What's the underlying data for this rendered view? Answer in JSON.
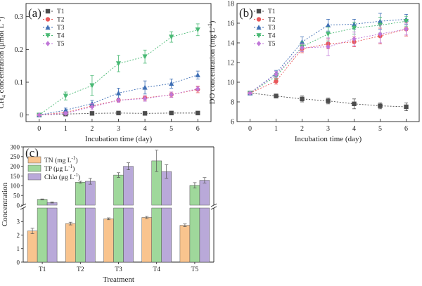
{
  "chart_data": [
    {
      "panel_label": "(a)",
      "type": "line",
      "xlabel": "Incubation time (day)",
      "ylabel": "CH4 concentration (μmol L⁻¹)",
      "ylabel_main": "CH",
      "ylabel_sub": "4",
      "ylabel_rest": " concentration (μmol L",
      "ylabel_sup": "-1",
      "ylabel_end": ")",
      "x": [
        0,
        1,
        2,
        3,
        4,
        5,
        6
      ],
      "xlim": [
        -0.5,
        6.5
      ],
      "ylim": [
        -0.02,
        0.34
      ],
      "yticks": [
        0,
        0.1,
        0.2,
        0.3
      ],
      "ytick_labels": [
        "0",
        "0.1",
        "0.2",
        "0.3"
      ],
      "legend": "top-left",
      "grid": false,
      "series": [
        {
          "name": "T1",
          "color": "#4d4d4d",
          "marker": "square",
          "values": [
            0,
            0.003,
            0.005,
            0.006,
            0.005,
            0.006,
            0.006
          ],
          "err": [
            0.002,
            0.002,
            0.002,
            0.002,
            0.002,
            0.003,
            0.003
          ]
        },
        {
          "name": "T2",
          "color": "#e8575a",
          "marker": "circle",
          "values": [
            0,
            0.008,
            0.028,
            0.045,
            0.052,
            0.062,
            0.078
          ],
          "err": [
            0.002,
            0.004,
            0.006,
            0.006,
            0.007,
            0.008,
            0.01
          ]
        },
        {
          "name": "T3",
          "color": "#3f6fb5",
          "marker": "triangle-up",
          "values": [
            0,
            0.015,
            0.035,
            0.067,
            0.084,
            0.096,
            0.122
          ],
          "err": [
            0.003,
            0.006,
            0.01,
            0.015,
            0.02,
            0.014,
            0.012
          ]
        },
        {
          "name": "T4",
          "color": "#49b974",
          "marker": "triangle-down",
          "values": [
            0,
            0.058,
            0.09,
            0.157,
            0.178,
            0.238,
            0.26
          ],
          "err": [
            0.004,
            0.012,
            0.03,
            0.025,
            0.02,
            0.016,
            0.018
          ]
        },
        {
          "name": "T5",
          "color": "#c077d8",
          "marker": "diamond",
          "values": [
            0,
            0.005,
            0.025,
            0.045,
            0.05,
            0.062,
            0.08
          ],
          "err": [
            0.002,
            0.005,
            0.01,
            0.006,
            0.008,
            0.008,
            0.006
          ]
        }
      ]
    },
    {
      "panel_label": "(b)",
      "type": "line",
      "xlabel": "Incubation time (day)",
      "ylabel": "DO concentration (mg L⁻¹)",
      "ylabel_main": "DO concentration (mg L",
      "ylabel_sup": "-1",
      "ylabel_end": ")",
      "x": [
        0,
        1,
        2,
        3,
        4,
        5,
        6
      ],
      "xlim": [
        -0.5,
        6.5
      ],
      "ylim": [
        6,
        18
      ],
      "yticks": [
        6,
        8,
        10,
        12,
        14,
        16,
        18
      ],
      "ytick_labels": [
        "6",
        "8",
        "10",
        "12",
        "14",
        "16",
        "18"
      ],
      "legend": "top-left",
      "grid": false,
      "series": [
        {
          "name": "T1",
          "color": "#4d4d4d",
          "marker": "square",
          "values": [
            8.9,
            8.6,
            8.3,
            8.1,
            7.8,
            7.6,
            7.5
          ],
          "err": [
            0.1,
            0.2,
            0.3,
            0.3,
            0.5,
            0.3,
            0.4
          ]
        },
        {
          "name": "T2",
          "color": "#e8575a",
          "marker": "circle",
          "values": [
            8.9,
            10.1,
            13.4,
            13.9,
            14.1,
            14.7,
            15.4
          ],
          "err": [
            0.1,
            0.3,
            0.4,
            0.5,
            0.5,
            0.8,
            0.7
          ]
        },
        {
          "name": "T3",
          "color": "#3f6fb5",
          "marker": "triangle-up",
          "values": [
            8.9,
            10.9,
            14.1,
            15.8,
            15.9,
            16.2,
            16.4
          ],
          "err": [
            0.1,
            0.3,
            0.5,
            0.6,
            0.5,
            0.8,
            0.5
          ]
        },
        {
          "name": "T4",
          "color": "#49b974",
          "marker": "triangle-down",
          "values": [
            8.9,
            10.6,
            13.6,
            14.9,
            15.5,
            15.8,
            16.2
          ],
          "err": [
            0.1,
            0.3,
            0.5,
            0.7,
            0.6,
            0.8,
            0.5
          ]
        },
        {
          "name": "T5",
          "color": "#c077d8",
          "marker": "diamond",
          "values": [
            8.9,
            10.8,
            13.5,
            13.6,
            14.4,
            14.9,
            15.4
          ],
          "err": [
            0.1,
            0.3,
            0.4,
            0.9,
            0.7,
            0.9,
            0.6
          ]
        }
      ]
    },
    {
      "panel_label": "(c)",
      "type": "bar",
      "xlabel": "Treatment",
      "ylabel": "Concentration",
      "categories": [
        "T1",
        "T2",
        "T3",
        "T4",
        "T5"
      ],
      "broken_axis": true,
      "lower_ylim": [
        0,
        4
      ],
      "lower_yticks": [
        0,
        1,
        2,
        3
      ],
      "upper_ylim": [
        0,
        300
      ],
      "upper_yticks": [
        0,
        50,
        100,
        150,
        200,
        250,
        300
      ],
      "legend": "top-left",
      "grid": false,
      "series": [
        {
          "name": "TN (mg L⁻¹)",
          "label_main": "TN (mg L",
          "label_italic": "",
          "label_mid": "",
          "label_sup": "-1",
          "label_end": ")",
          "color": "#f9c48e",
          "values": [
            2.3,
            2.85,
            3.2,
            3.3,
            2.72
          ],
          "err": [
            0.2,
            0.1,
            0.07,
            0.08,
            0.1
          ]
        },
        {
          "name": "TP (μg L⁻¹)",
          "label_main": "TP (μg L",
          "label_italic": "",
          "label_mid": "",
          "label_sup": "-1",
          "label_end": ")",
          "color": "#9fd89b",
          "values": [
            30,
            118,
            155,
            228,
            102
          ],
          "err": [
            2,
            5,
            12,
            55,
            14
          ]
        },
        {
          "name": "Chla (μg L⁻¹)",
          "label_main": "Chl",
          "label_italic": "a",
          "label_mid": " (μg L",
          "label_sup": "-1",
          "label_end": ")",
          "color": "#b9a9d9",
          "values": [
            14,
            123,
            200,
            173,
            128
          ],
          "err": [
            3,
            15,
            18,
            35,
            14
          ]
        }
      ]
    }
  ]
}
